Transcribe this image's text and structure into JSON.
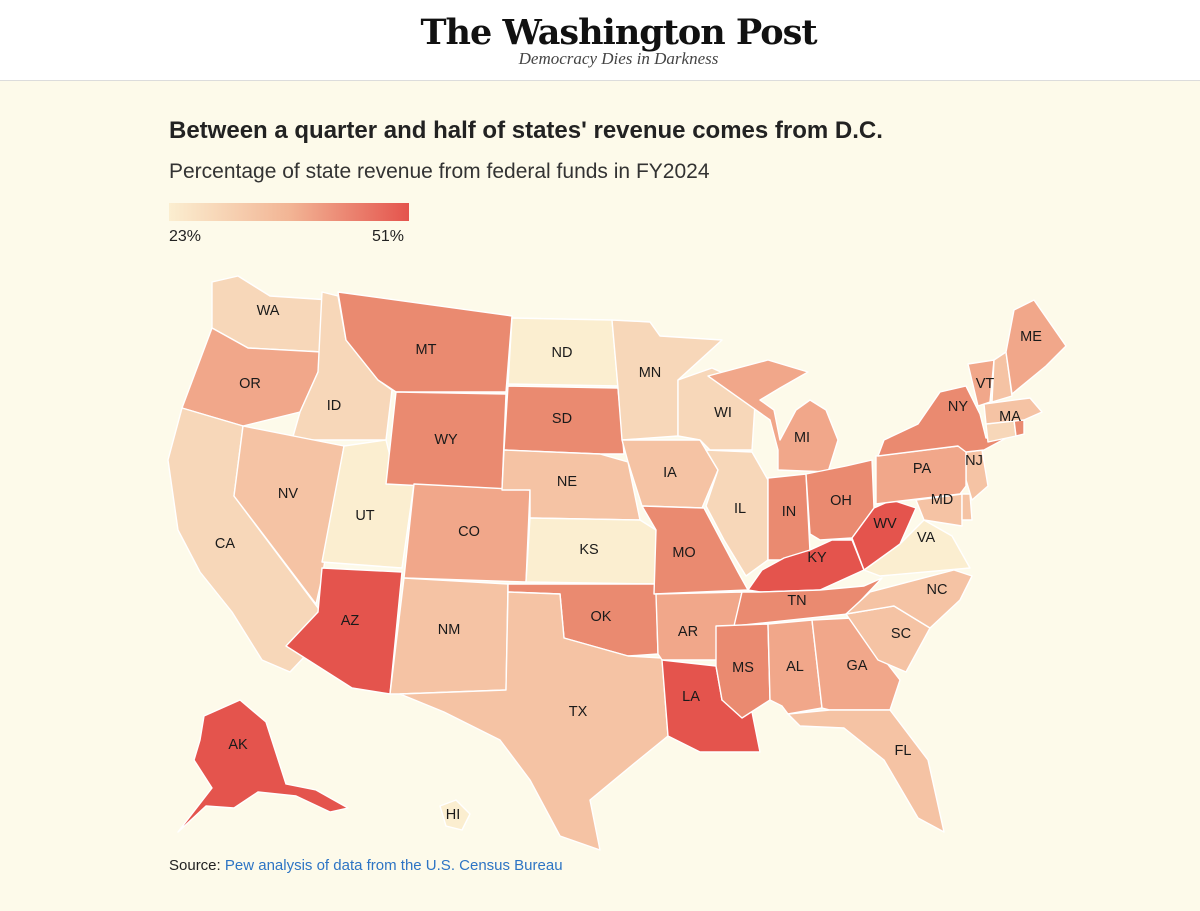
{
  "masthead": {
    "brand": "The Washington Post",
    "tagline": "Democracy Dies in Darkness"
  },
  "chart": {
    "title": "Between a quarter and half of states' revenue comes from D.C.",
    "subtitle": "Percentage of state revenue from federal funds in FY2024",
    "legend": {
      "min_label": "23%",
      "max_label": "51%",
      "min_color": "#fbeed0",
      "mid_color": "#f2b595",
      "max_color": "#e4544d"
    },
    "source_prefix": "Source:",
    "source_link": "Pew analysis of data from the U.S. Census Bureau"
  },
  "colors": {
    "shade1": "#fbeed0",
    "shade2": "#f7d7b9",
    "shade3": "#f5c3a4",
    "shade4": "#f1a78a",
    "shade5": "#ea8a70",
    "shade6": "#e4544d",
    "border": "#ffffff",
    "link": "#2d74c4"
  },
  "states": [
    {
      "abbr": "WA",
      "shade": "shade2"
    },
    {
      "abbr": "OR",
      "shade": "shade4"
    },
    {
      "abbr": "CA",
      "shade": "shade2"
    },
    {
      "abbr": "ID",
      "shade": "shade2"
    },
    {
      "abbr": "NV",
      "shade": "shade3"
    },
    {
      "abbr": "UT",
      "shade": "shade1"
    },
    {
      "abbr": "AZ",
      "shade": "shade6"
    },
    {
      "abbr": "MT",
      "shade": "shade5"
    },
    {
      "abbr": "WY",
      "shade": "shade5"
    },
    {
      "abbr": "CO",
      "shade": "shade4"
    },
    {
      "abbr": "NM",
      "shade": "shade3"
    },
    {
      "abbr": "ND",
      "shade": "shade1"
    },
    {
      "abbr": "SD",
      "shade": "shade5"
    },
    {
      "abbr": "NE",
      "shade": "shade3"
    },
    {
      "abbr": "KS",
      "shade": "shade1"
    },
    {
      "abbr": "OK",
      "shade": "shade5"
    },
    {
      "abbr": "TX",
      "shade": "shade3"
    },
    {
      "abbr": "MN",
      "shade": "shade2"
    },
    {
      "abbr": "IA",
      "shade": "shade3"
    },
    {
      "abbr": "MO",
      "shade": "shade5"
    },
    {
      "abbr": "AR",
      "shade": "shade4"
    },
    {
      "abbr": "LA",
      "shade": "shade6"
    },
    {
      "abbr": "WI",
      "shade": "shade2"
    },
    {
      "abbr": "IL",
      "shade": "shade2"
    },
    {
      "abbr": "MI",
      "shade": "shade4"
    },
    {
      "abbr": "IN",
      "shade": "shade5"
    },
    {
      "abbr": "OH",
      "shade": "shade5"
    },
    {
      "abbr": "KY",
      "shade": "shade6"
    },
    {
      "abbr": "TN",
      "shade": "shade5"
    },
    {
      "abbr": "MS",
      "shade": "shade5"
    },
    {
      "abbr": "AL",
      "shade": "shade4"
    },
    {
      "abbr": "GA",
      "shade": "shade4"
    },
    {
      "abbr": "FL",
      "shade": "shade3"
    },
    {
      "abbr": "SC",
      "shade": "shade3"
    },
    {
      "abbr": "NC",
      "shade": "shade3"
    },
    {
      "abbr": "VA",
      "shade": "shade1"
    },
    {
      "abbr": "WV",
      "shade": "shade6"
    },
    {
      "abbr": "MD",
      "shade": "shade3"
    },
    {
      "abbr": "DE",
      "shade": "shade3"
    },
    {
      "abbr": "NJ",
      "shade": "shade3"
    },
    {
      "abbr": "PA",
      "shade": "shade4"
    },
    {
      "abbr": "NY",
      "shade": "shade5"
    },
    {
      "abbr": "CT",
      "shade": "shade2"
    },
    {
      "abbr": "RI",
      "shade": "shade5"
    },
    {
      "abbr": "MA",
      "shade": "shade3"
    },
    {
      "abbr": "VT",
      "shade": "shade4"
    },
    {
      "abbr": "NH",
      "shade": "shade3"
    },
    {
      "abbr": "ME",
      "shade": "shade4"
    },
    {
      "abbr": "AK",
      "shade": "shade6"
    },
    {
      "abbr": "HI",
      "shade": "shade1"
    }
  ]
}
